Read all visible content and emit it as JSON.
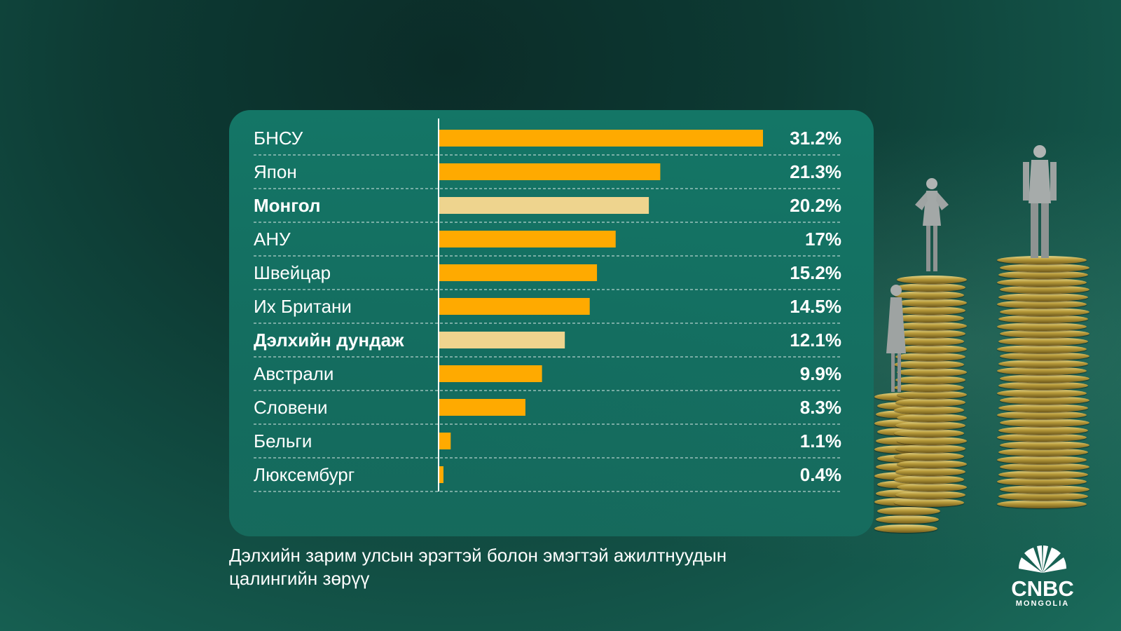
{
  "chart_data": {
    "type": "bar",
    "orientation": "horizontal",
    "categories": [
      "БНСУ",
      "Япон",
      "Монгол",
      "АНУ",
      "Швейцар",
      "Их Британи",
      "Дэлхийн дундаж",
      "Австрали",
      "Словени",
      "Бельги",
      "Люксембург"
    ],
    "values": [
      31.2,
      21.3,
      20.2,
      17,
      15.2,
      14.5,
      12.1,
      9.9,
      8.3,
      1.1,
      0.4
    ],
    "value_labels": [
      "31.2%",
      "21.3%",
      "20.2%",
      "17%",
      "15.2%",
      "14.5%",
      "12.1%",
      "9.9%",
      "8.3%",
      "1.1%",
      "0.4%"
    ],
    "highlighted": [
      "Монгол",
      "Дэлхийн дундаж"
    ],
    "colors": {
      "bar": "#FFAA00",
      "highlight": "#EED48E",
      "text": "#FFFFFF"
    },
    "grid": "dashed row separators"
  },
  "caption": "Дэлхийн зарим улсын эрэгтэй болон эмэгтэй ажилтнуудын цалингийн зөрүү",
  "logo": {
    "name": "CNBC",
    "sub": "MONGOLIA"
  }
}
